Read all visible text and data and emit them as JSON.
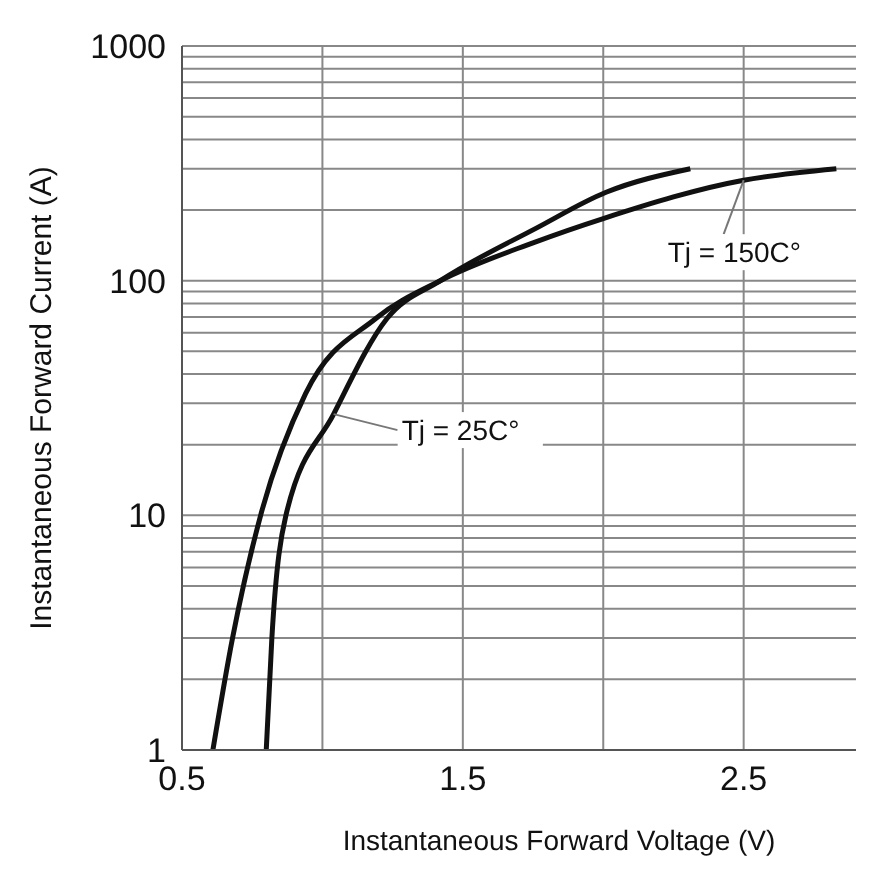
{
  "chart_data": {
    "type": "line",
    "xlabel": "Instantaneous Forward Voltage (V)",
    "ylabel": "Instantaneous Forward Current (A)",
    "series": [
      {
        "name": "Tj = 150C°",
        "color": "#111111",
        "x": [
          0.61,
          0.68,
          0.78,
          0.94,
          1.19,
          1.42,
          1.75,
          2.0,
          2.5,
          2.83
        ],
        "values": [
          1,
          3,
          10,
          33,
          69,
          100,
          145,
          184,
          268,
          300
        ]
      },
      {
        "name": "Tj = 25C°",
        "color": "#111111",
        "x": [
          0.8,
          0.82,
          0.87,
          1.04,
          1.23,
          1.42,
          1.76,
          2.01,
          2.31
        ],
        "values": [
          1,
          3,
          10,
          27,
          69,
          100,
          167,
          238,
          300
        ]
      }
    ],
    "xlim": [
      0.5,
      2.9
    ],
    "xticks": [
      0.5,
      {
        "value": 1,
        "label": null
      },
      1.5,
      {
        "value": 2,
        "label": null
      },
      2.5
    ],
    "ylim": [
      1,
      1000
    ],
    "yticks": [
      1,
      {
        "value": 2,
        "label": null
      },
      {
        "value": 3,
        "label": null
      },
      {
        "value": 4,
        "label": null
      },
      {
        "value": 5,
        "label": null
      },
      {
        "value": 6,
        "label": null
      },
      {
        "value": 7,
        "label": null
      },
      {
        "value": 8,
        "label": null
      },
      {
        "value": 9,
        "label": null
      },
      10,
      {
        "value": 20,
        "label": null
      },
      {
        "value": 30,
        "label": null
      },
      {
        "value": 40,
        "label": null
      },
      {
        "value": 50,
        "label": null
      },
      {
        "value": 60,
        "label": null
      },
      {
        "value": 70,
        "label": null
      },
      {
        "value": 80,
        "label": null
      },
      {
        "value": 90,
        "label": null
      },
      100,
      {
        "value": 200,
        "label": null
      },
      {
        "value": 300,
        "label": null
      },
      {
        "value": 400,
        "label": null
      },
      {
        "value": 500,
        "label": null
      },
      {
        "value": 600,
        "label": null
      },
      {
        "value": 700,
        "label": null
      },
      {
        "value": 800,
        "label": null
      },
      {
        "value": 900,
        "label": null
      },
      1000
    ],
    "log": true,
    "grid": true,
    "legend": false,
    "marker": "none",
    "line_style": "solid"
  }
}
